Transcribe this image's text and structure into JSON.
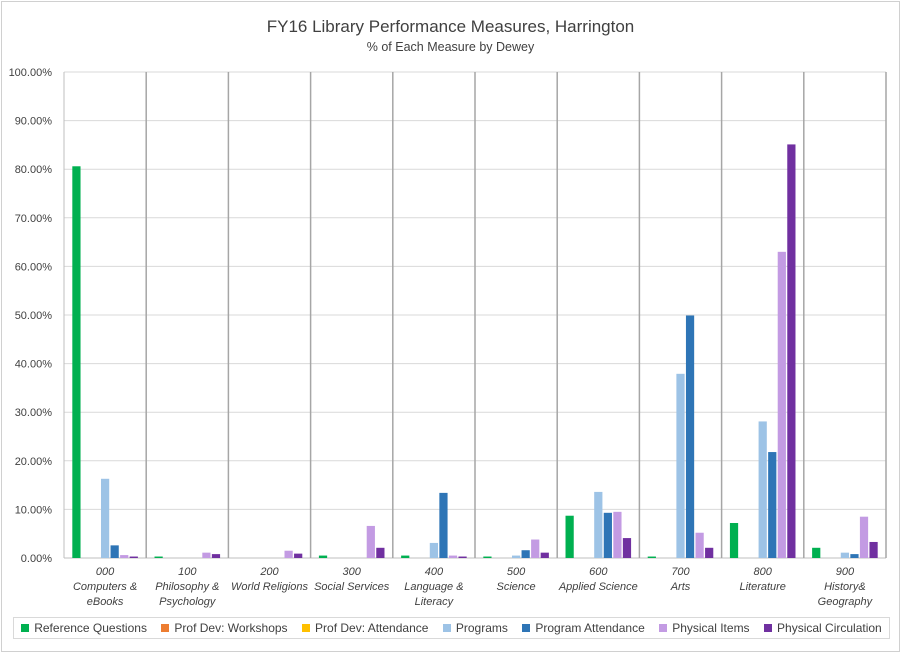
{
  "chart_data": {
    "type": "bar",
    "title": "FY16 Library Performance Measures, Harrington",
    "subtitle": "% of Each Measure by Dewey",
    "xlabel": "",
    "ylabel": "",
    "ylim": [
      0,
      100
    ],
    "y_ticks": [
      "0.00%",
      "10.00%",
      "20.00%",
      "30.00%",
      "40.00%",
      "50.00%",
      "60.00%",
      "70.00%",
      "80.00%",
      "90.00%",
      "100.00%"
    ],
    "categories": [
      [
        "000",
        "Computers &",
        "eBooks"
      ],
      [
        "100",
        "Philosophy &",
        "Psychology"
      ],
      [
        "200",
        "World Religions"
      ],
      [
        "300",
        "Social Services"
      ],
      [
        "400",
        "Language &",
        "Literacy"
      ],
      [
        "500",
        "Science"
      ],
      [
        "600",
        "Applied Science"
      ],
      [
        "700",
        "Arts"
      ],
      [
        "800",
        "Literature"
      ],
      [
        "900",
        "History&",
        "Geography"
      ]
    ],
    "legend_position": "bottom",
    "series": [
      {
        "name": "Reference Questions",
        "color": "#00b050",
        "values": [
          80.6,
          0.3,
          0.0,
          0.5,
          0.5,
          0.3,
          8.7,
          0.3,
          7.2,
          2.1
        ]
      },
      {
        "name": "Prof Dev: Workshops",
        "color": "#ed7d31",
        "values": [
          0,
          0,
          0,
          0,
          0,
          0,
          0,
          0,
          0,
          0
        ]
      },
      {
        "name": "Prof Dev: Attendance",
        "color": "#ffc000",
        "values": [
          0,
          0,
          0,
          0,
          0,
          0,
          0,
          0,
          0,
          0
        ]
      },
      {
        "name": "Programs",
        "color": "#9dc3e6",
        "values": [
          16.3,
          0.0,
          0.0,
          0.0,
          3.1,
          0.5,
          13.6,
          37.9,
          28.1,
          1.1
        ]
      },
      {
        "name": "Program Attendance",
        "color": "#2e75b6",
        "values": [
          2.6,
          0.0,
          0.0,
          0.0,
          13.4,
          1.6,
          9.3,
          49.9,
          21.8,
          0.8
        ]
      },
      {
        "name": "Physical Items",
        "color": "#c39be3",
        "values": [
          0.6,
          1.1,
          1.5,
          6.6,
          0.5,
          3.8,
          9.5,
          5.2,
          63.0,
          8.5
        ]
      },
      {
        "name": "Physical Circulation",
        "color": "#7030a0",
        "values": [
          0.3,
          0.8,
          0.9,
          2.1,
          0.3,
          1.1,
          4.1,
          2.1,
          85.1,
          3.3
        ]
      }
    ]
  }
}
